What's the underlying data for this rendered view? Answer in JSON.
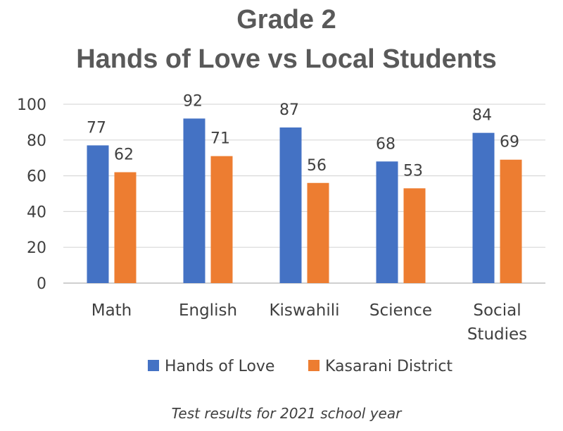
{
  "chart_data": {
    "type": "bar",
    "title_lines": [
      "Grade 2",
      "Hands of Love vs Local Students"
    ],
    "categories": [
      [
        "Math"
      ],
      [
        "English"
      ],
      [
        "Kiswahili"
      ],
      [
        "Science"
      ],
      [
        "Social",
        "Studies"
      ]
    ],
    "series": [
      {
        "name": "Hands of Love",
        "color": "#4472c4",
        "values": [
          77,
          92,
          87,
          68,
          84
        ]
      },
      {
        "name": "Kasarani District",
        "color": "#ed7d31",
        "values": [
          62,
          71,
          56,
          53,
          69
        ]
      }
    ],
    "ylim": [
      0,
      100
    ],
    "yticks": [
      0,
      20,
      40,
      60,
      80,
      100
    ],
    "grid": true,
    "legend_position": "bottom",
    "caption": "Test results for 2021 school year"
  }
}
